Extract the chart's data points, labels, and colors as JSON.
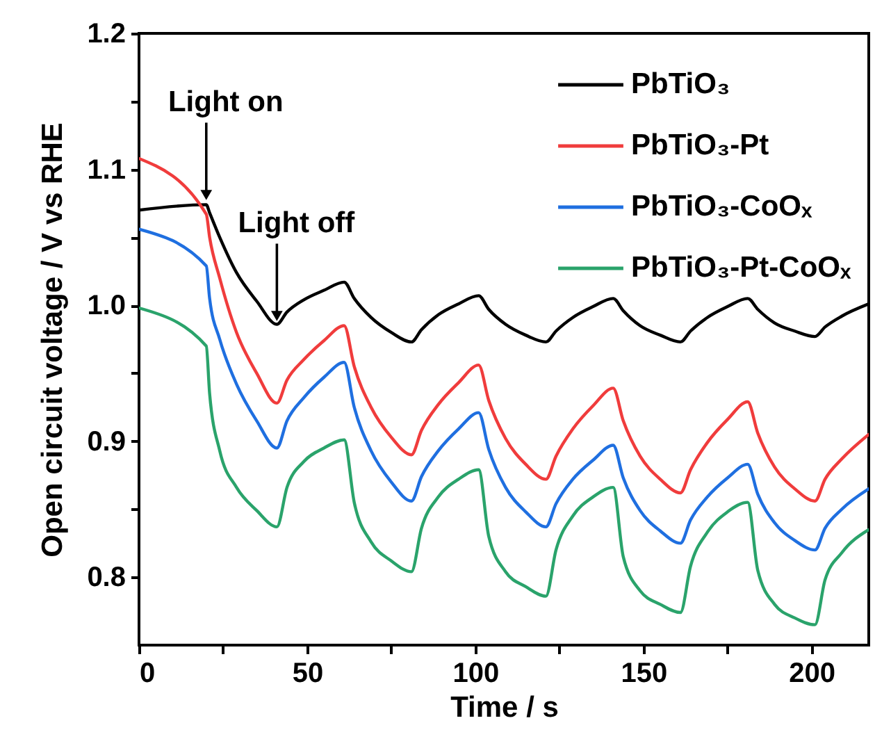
{
  "chart_data": {
    "type": "line",
    "xlabel": "Time / s",
    "ylabel": "Open circuit voltage / V vs RHE",
    "x": [
      0,
      20,
      21,
      24,
      29,
      35,
      41,
      44,
      49,
      55,
      61,
      64,
      69,
      75,
      81,
      84,
      89,
      95,
      101,
      104,
      109,
      115,
      121,
      124,
      129,
      135,
      141,
      144,
      149,
      155,
      161,
      164,
      169,
      175,
      181,
      184,
      189,
      195,
      201,
      204,
      209,
      217
    ],
    "series": [
      {
        "name": "PbTiO₃",
        "color": "#000000",
        "values": [
          1.07,
          1.074,
          1.068,
          1.05,
          1.024,
          1.003,
          0.986,
          0.995,
          1.004,
          1.011,
          1.017,
          1.005,
          0.991,
          0.98,
          0.973,
          0.982,
          0.993,
          1.001,
          1.007,
          0.997,
          0.986,
          0.978,
          0.973,
          0.981,
          0.991,
          0.999,
          1.005,
          0.996,
          0.985,
          0.978,
          0.973,
          0.981,
          0.991,
          0.999,
          1.005,
          0.997,
          0.987,
          0.981,
          0.977,
          0.984,
          0.992,
          1.001
        ]
      },
      {
        "name": "PbTiO₃-Pt",
        "color": "#f03c3c",
        "values": [
          1.108,
          1.067,
          1.05,
          1.02,
          0.98,
          0.95,
          0.928,
          0.945,
          0.96,
          0.974,
          0.985,
          0.955,
          0.925,
          0.903,
          0.89,
          0.908,
          0.927,
          0.943,
          0.956,
          0.93,
          0.902,
          0.883,
          0.872,
          0.889,
          0.909,
          0.926,
          0.939,
          0.915,
          0.889,
          0.872,
          0.862,
          0.879,
          0.899,
          0.916,
          0.929,
          0.906,
          0.881,
          0.865,
          0.856,
          0.872,
          0.887,
          0.905
        ]
      },
      {
        "name": "PbTiO₃-CoOₓ",
        "color": "#1f6fe0",
        "values": [
          1.056,
          1.029,
          1.005,
          0.975,
          0.942,
          0.915,
          0.895,
          0.915,
          0.932,
          0.947,
          0.958,
          0.925,
          0.893,
          0.87,
          0.856,
          0.874,
          0.893,
          0.909,
          0.921,
          0.894,
          0.866,
          0.848,
          0.837,
          0.854,
          0.872,
          0.886,
          0.897,
          0.873,
          0.849,
          0.834,
          0.825,
          0.842,
          0.859,
          0.873,
          0.883,
          0.861,
          0.84,
          0.827,
          0.82,
          0.836,
          0.85,
          0.865
        ]
      },
      {
        "name": "PbTiO₃-Pt-CoOₓ",
        "color": "#2aa36b",
        "values": [
          0.998,
          0.97,
          0.935,
          0.893,
          0.866,
          0.849,
          0.837,
          0.866,
          0.885,
          0.895,
          0.901,
          0.855,
          0.826,
          0.812,
          0.804,
          0.836,
          0.859,
          0.872,
          0.879,
          0.83,
          0.804,
          0.793,
          0.786,
          0.82,
          0.845,
          0.859,
          0.866,
          0.815,
          0.79,
          0.78,
          0.774,
          0.808,
          0.833,
          0.848,
          0.855,
          0.805,
          0.78,
          0.77,
          0.765,
          0.798,
          0.818,
          0.835
        ]
      }
    ],
    "annotations": [
      {
        "text": "Light on",
        "x": 20,
        "y": 1.075
      },
      {
        "text": "Light off",
        "x": 41,
        "y": 0.986
      }
    ],
    "xlim": [
      0,
      217
    ],
    "xticks": [
      0,
      {
        "value": 25,
        "label": null
      },
      50,
      {
        "value": 75,
        "label": null
      },
      100,
      {
        "value": 125,
        "label": null
      },
      150,
      {
        "value": 175,
        "label": null
      },
      200
    ],
    "ylim": [
      0.75,
      1.2
    ],
    "yticks": [
      0.8,
      {
        "value": 0.85,
        "label": null
      },
      0.9,
      {
        "value": 0.95,
        "label": null
      },
      {
        "value": 1.0,
        "label": "1.0"
      },
      {
        "value": 1.05,
        "label": null
      },
      1.1,
      {
        "value": 1.15,
        "label": null
      },
      1.2
    ],
    "grid": false,
    "legend": "top right",
    "marker": "none",
    "line_style": "solid"
  }
}
